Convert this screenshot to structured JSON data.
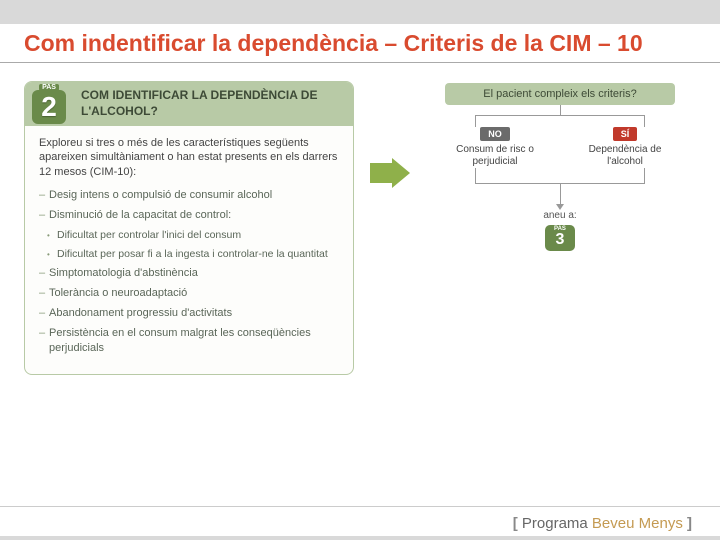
{
  "title": "Com indentificar la dependència – Criteris de la CIM – 10",
  "step": {
    "pas_label": "PAS",
    "number": "2",
    "heading": "COM IDENTIFICAR LA DEPENDÈNCIA DE L'ALCOHOL?"
  },
  "intro": "Exploreu si tres o més de les característiques següents apareixen simultàniament o han estat presents en els darrers 12 mesos (CIM-10):",
  "criteria": [
    "Desig intens o compulsió de consumir alcohol",
    "Disminució de la capacitat de control:",
    "Dificultat per controlar l'inici del consum",
    "Dificultat per posar fi a la ingesta i controlar-ne la quantitat",
    "Simptomatologia d'abstinència",
    "Tolerància o neuroadaptació",
    "Abandonament progressiu d'activitats",
    "Persistència en el consum malgrat les conseqüències perjudicials"
  ],
  "flowchart": {
    "question": "El pacient compleix els criteris?",
    "no_tag": "NO",
    "no_text": "Consum de risc o perjudicial",
    "si_tag": "SÍ",
    "si_text": "Dependència de l'alcohol",
    "goto": "aneu a:",
    "next_pas": "PAS",
    "next_num": "3"
  },
  "footer": {
    "bracket_open": "[",
    "word1": "Programa",
    "word2": "Beveu",
    "word3": "Menys",
    "bracket_close": "]"
  },
  "colors": {
    "title_color": "#d94b2f",
    "header_bg": "#b8caa6",
    "badge_bg": "#6a8a4a",
    "arrow_color": "#8fb04a",
    "no_bg": "#6b6b6b",
    "si_bg": "#c1392b",
    "footer_accent": "#c49a52"
  }
}
